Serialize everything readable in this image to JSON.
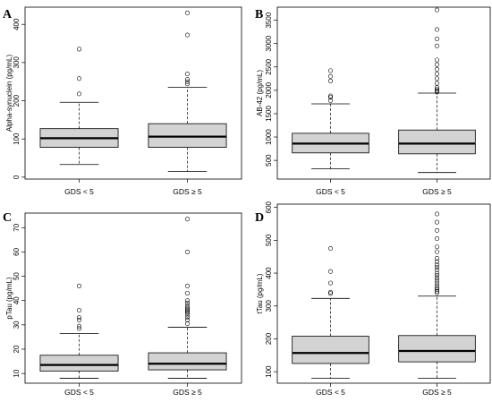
{
  "chart_data": [
    {
      "type": "boxplot",
      "panel_label": "A",
      "ylabel": "Alpha-synuclein (pg/mL)",
      "xlabel": "",
      "categories": [
        "GDS < 5",
        "GDS ≥ 5"
      ],
      "yticks": [
        0,
        100,
        200,
        300,
        400
      ],
      "ylim": [
        -5,
        445
      ],
      "grid": false,
      "boxes": [
        {
          "group": "GDS < 5",
          "whisker_low": 33,
          "q1": 78,
          "median": 102,
          "q3": 127,
          "whisker_high": 196,
          "outliers": [
            218,
            258,
            335
          ]
        },
        {
          "group": "GDS ≥ 5",
          "whisker_low": 15,
          "q1": 78,
          "median": 106,
          "q3": 140,
          "whisker_high": 235,
          "outliers": [
            244,
            250,
            256,
            270,
            372,
            430
          ]
        }
      ]
    },
    {
      "type": "boxplot",
      "panel_label": "B",
      "ylabel": "AB-42 (pg/mL)",
      "xlabel": "",
      "categories": [
        "GDS < 5",
        "GDS ≥ 5"
      ],
      "yticks": [
        500,
        1000,
        1500,
        2000,
        2500,
        3000,
        3500
      ],
      "ylim": [
        100,
        3780
      ],
      "grid": false,
      "boxes": [
        {
          "group": "GDS < 5",
          "whisker_low": 320,
          "q1": 660,
          "median": 860,
          "q3": 1080,
          "whisker_high": 1710,
          "outliers": [
            1780,
            1850,
            1880,
            2200,
            2300,
            2420
          ]
        },
        {
          "group": "GDS ≥ 5",
          "whisker_low": 240,
          "q1": 640,
          "median": 860,
          "q3": 1150,
          "whisker_high": 1940,
          "outliers": [
            1960,
            1990,
            2020,
            2060,
            2150,
            2250,
            2350,
            2450,
            2550,
            2650,
            2950,
            3100,
            3300,
            3720
          ]
        }
      ]
    },
    {
      "type": "boxplot",
      "panel_label": "C",
      "ylabel": "pTau (pg/mL)",
      "xlabel": "",
      "categories": [
        "GDS < 5",
        "GDS ≥ 5"
      ],
      "yticks": [
        10,
        20,
        30,
        40,
        50,
        60,
        70
      ],
      "ylim": [
        6,
        76
      ],
      "grid": false,
      "boxes": [
        {
          "group": "GDS < 5",
          "whisker_low": 8,
          "q1": 11,
          "median": 13.5,
          "q3": 17.5,
          "whisker_high": 26.5,
          "outliers": [
            28.5,
            29.5,
            32,
            33,
            36,
            46
          ]
        },
        {
          "group": "GDS ≥ 5",
          "whisker_low": 8,
          "q1": 11.5,
          "median": 14,
          "q3": 18.5,
          "whisker_high": 29,
          "outliers": [
            30.5,
            32,
            33,
            34,
            35,
            35.5,
            36,
            36.5,
            37,
            38,
            39,
            40,
            43,
            46,
            60,
            73.5
          ]
        }
      ]
    },
    {
      "type": "boxplot",
      "panel_label": "D",
      "ylabel": "tTau (pg/mL)",
      "xlabel": "",
      "categories": [
        "GDS < 5",
        "GDS ≥ 5"
      ],
      "yticks": [
        100,
        200,
        300,
        400,
        500,
        600
      ],
      "ylim": [
        65,
        610
      ],
      "grid": false,
      "boxes": [
        {
          "group": "GDS < 5",
          "whisker_low": 80,
          "q1": 125,
          "median": 157,
          "q3": 208,
          "whisker_high": 323,
          "outliers": [
            338,
            342,
            370,
            405,
            475
          ]
        },
        {
          "group": "GDS ≥ 5",
          "whisker_low": 80,
          "q1": 130,
          "median": 163,
          "q3": 210,
          "whisker_high": 330,
          "outliers": [
            340,
            345,
            350,
            355,
            362,
            370,
            378,
            385,
            393,
            400,
            410,
            418,
            425,
            435,
            445,
            465,
            480,
            505,
            530,
            555,
            580
          ]
        }
      ]
    }
  ]
}
